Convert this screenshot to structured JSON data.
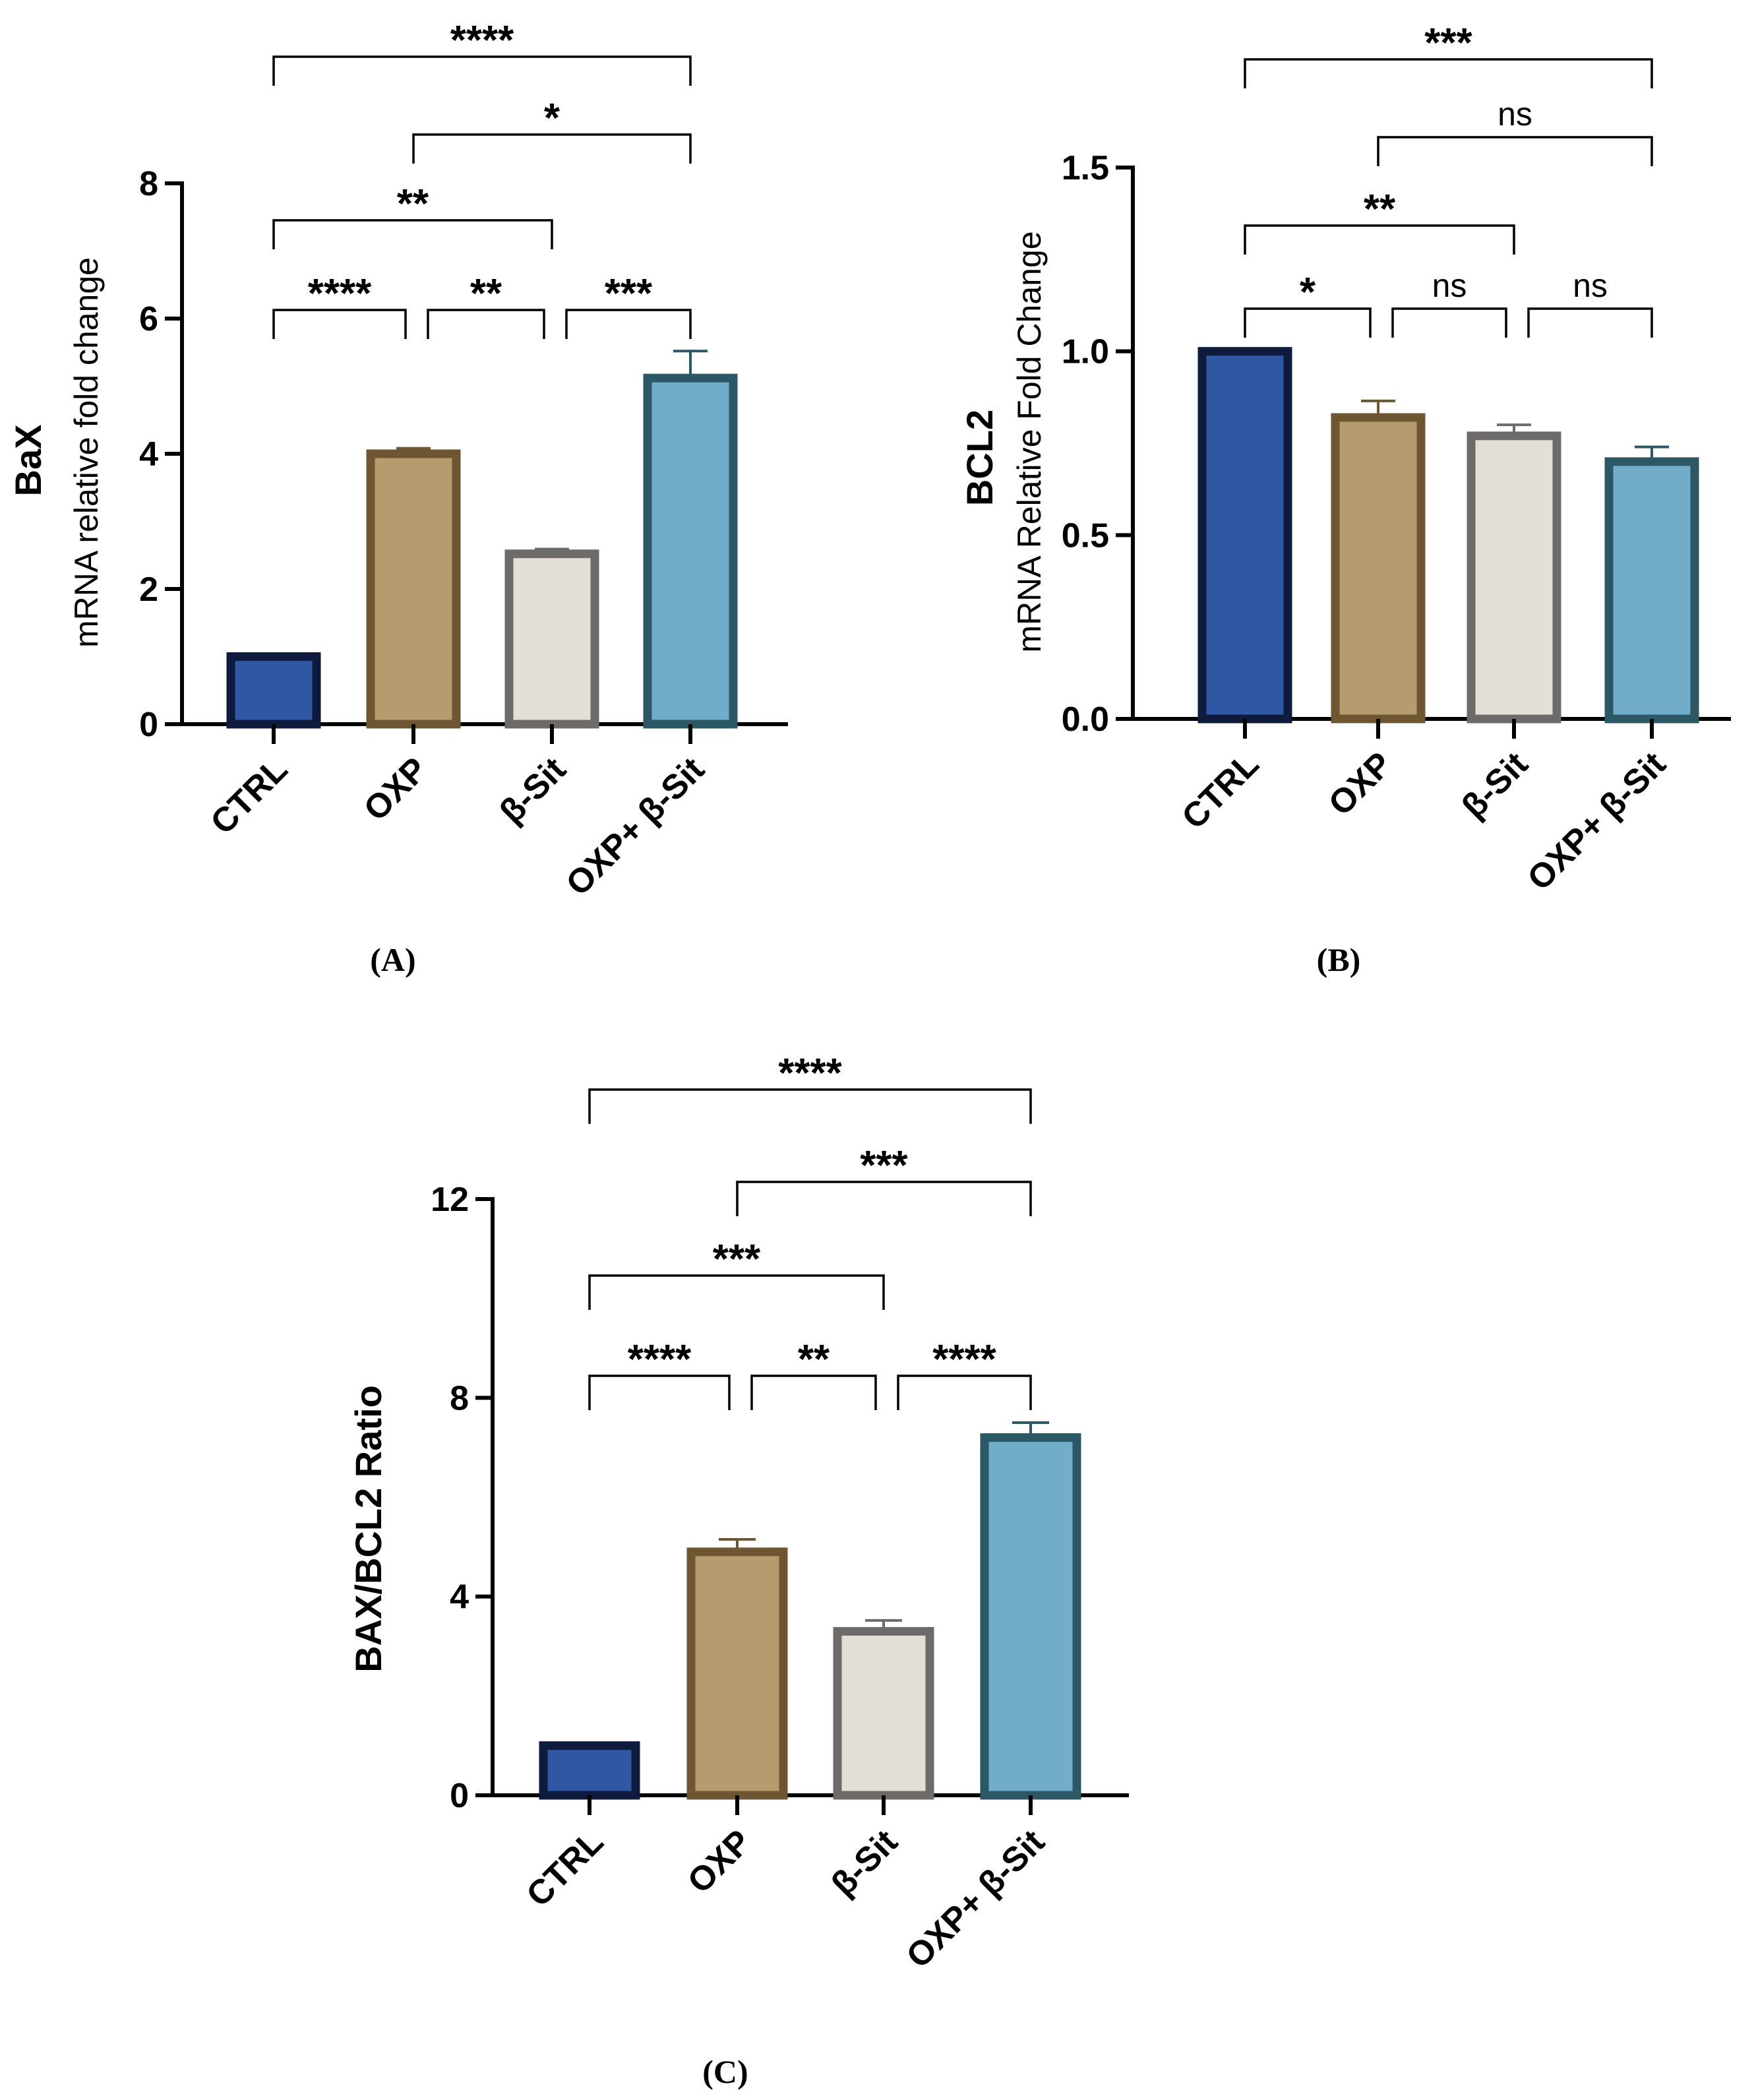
{
  "chart_data": [
    {
      "panel_label": "(A)",
      "type": "bar",
      "ylabel_title": "BaX",
      "ylabel": "mRNA relative fold change",
      "categories": [
        "CTRL",
        "OXP",
        "β-Sit",
        "OXP+ β-Sit"
      ],
      "values": [
        1.0,
        4.0,
        2.52,
        5.12
      ],
      "errors": [
        0.0,
        0.08,
        0.07,
        0.4
      ],
      "ylim": [
        0,
        8
      ],
      "yticks": [
        "0",
        "2",
        "4",
        "6",
        "8"
      ],
      "ytick_values": [
        0,
        2,
        4,
        6,
        8
      ],
      "comparisons": [
        {
          "from": 0,
          "to": 3,
          "label": "****"
        },
        {
          "from": 1,
          "to": 3,
          "label": "*"
        },
        {
          "from": 0,
          "to": 2,
          "label": "**"
        },
        {
          "from": 0,
          "to": 1,
          "label": "****"
        },
        {
          "from": 1,
          "to": 2,
          "label": "**"
        },
        {
          "from": 2,
          "to": 3,
          "label": "***"
        }
      ]
    },
    {
      "panel_label": "(B)",
      "type": "bar",
      "ylabel_title": "BCL2",
      "ylabel": "mRNA Relative Fold Change",
      "categories": [
        "CTRL",
        "OXP",
        "β-Sit",
        "OXP+ β-Sit"
      ],
      "values": [
        1.0,
        0.82,
        0.77,
        0.7
      ],
      "errors": [
        0.0,
        0.045,
        0.03,
        0.04
      ],
      "ylim": [
        0,
        1.5
      ],
      "yticks": [
        "0.0",
        "0.5",
        "1.0",
        "1.5"
      ],
      "ytick_values": [
        0,
        0.5,
        1.0,
        1.5
      ],
      "comparisons": [
        {
          "from": 0,
          "to": 3,
          "label": "***"
        },
        {
          "from": 1,
          "to": 3,
          "label": "ns"
        },
        {
          "from": 0,
          "to": 2,
          "label": "**"
        },
        {
          "from": 0,
          "to": 1,
          "label": "*"
        },
        {
          "from": 1,
          "to": 2,
          "label": "ns"
        },
        {
          "from": 2,
          "to": 3,
          "label": "ns"
        }
      ]
    },
    {
      "panel_label": "(C)",
      "type": "bar",
      "ylabel_title": "BAX/BCL2 Ratio",
      "ylabel": "",
      "categories": [
        "CTRL",
        "OXP",
        "β-Sit",
        "OXP+ β-Sit"
      ],
      "values": [
        1.0,
        4.9,
        3.3,
        7.2
      ],
      "errors": [
        0.0,
        0.25,
        0.22,
        0.3
      ],
      "ylim": [
        0,
        12
      ],
      "yticks": [
        "0",
        "4",
        "8",
        "12"
      ],
      "ytick_values": [
        0,
        4,
        8,
        12
      ],
      "comparisons": [
        {
          "from": 0,
          "to": 3,
          "label": "****"
        },
        {
          "from": 1,
          "to": 3,
          "label": "***"
        },
        {
          "from": 0,
          "to": 2,
          "label": "***"
        },
        {
          "from": 0,
          "to": 1,
          "label": "****"
        },
        {
          "from": 1,
          "to": 2,
          "label": "**"
        },
        {
          "from": 2,
          "to": 3,
          "label": "****"
        }
      ]
    }
  ],
  "colors": {
    "fills": [
      "#3057a3",
      "#b59c6f",
      "#e3dfd6",
      "#71adc9"
    ],
    "strokes": [
      "#0e1b3d",
      "#6e5632",
      "#6c6b69",
      "#2c5765"
    ]
  }
}
